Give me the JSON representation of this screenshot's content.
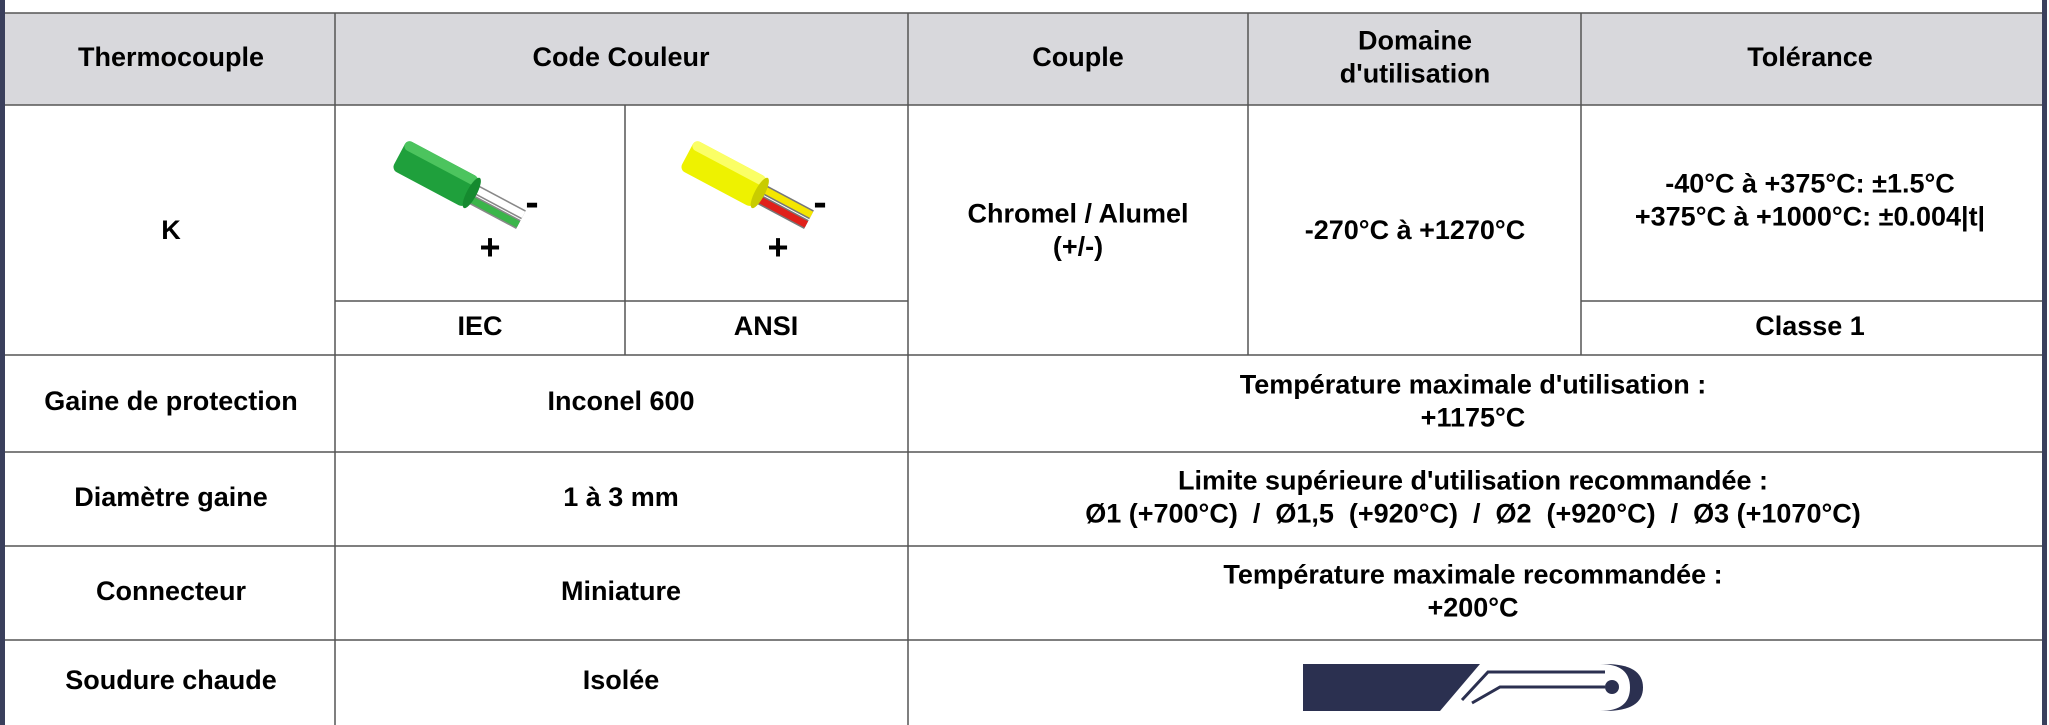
{
  "header": {
    "cells": [
      [
        "Thermocouple"
      ],
      [
        "Code Couleur"
      ],
      [
        "Couple"
      ],
      [
        "Domaine",
        "d'utilisation"
      ],
      [
        "Tolérance"
      ]
    ]
  },
  "thermocouple": {
    "type": "K",
    "iec_icon": {
      "minus": "-",
      "plus": "+"
    },
    "ansi_icon": {
      "minus": "-",
      "plus": "+"
    },
    "iec_label": "IEC",
    "ansi_label": "ANSI",
    "couple": [
      "Chromel / Alumel",
      "(+/-)"
    ],
    "domaine": "-270°C à +1270°C",
    "tolerance": [
      "-40°C à +375°C: ±1.5°C",
      "+375°C à +1000°C: ±0.004|t|"
    ],
    "classe": "Classe 1"
  },
  "rows": [
    {
      "label": "Gaine de protection",
      "value": "Inconel 600",
      "note": [
        "Température maximale d'utilisation :",
        "+1175°C"
      ]
    },
    {
      "label": "Diamètre gaine",
      "value": "1 à 3 mm",
      "note": [
        "Limite supérieure d'utilisation recommandée :",
        "Ø1 (+700°C)  /  Ø1,5  (+920°C)  /  Ø2  (+920°C)  /  Ø3 (+1070°C)"
      ]
    },
    {
      "label": "Connecteur",
      "value": "Miniature",
      "note": [
        "Température maximale recommandée :",
        "+200°C"
      ]
    },
    {
      "label": "Soudure chaude",
      "value": "Isolée"
    }
  ]
}
